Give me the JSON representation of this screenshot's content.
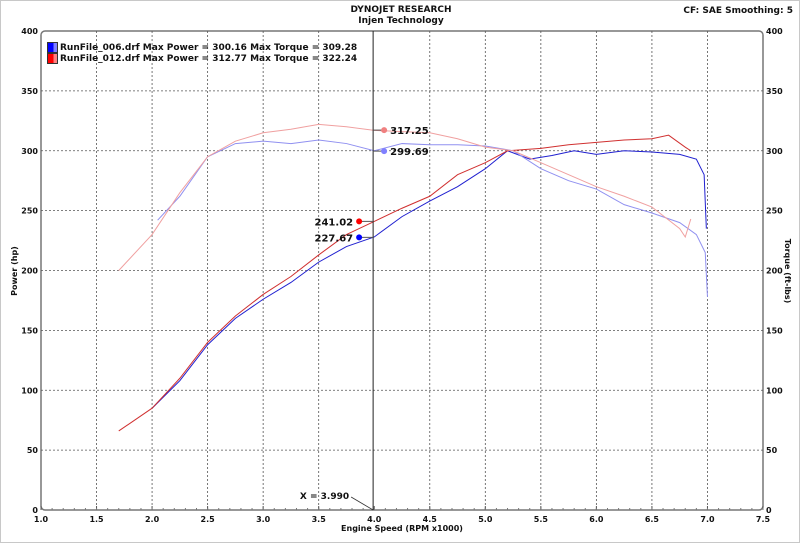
{
  "header": {
    "title": "DYNOJET RESEARCH",
    "subtitle": "Injen Technology",
    "settings": "CF: SAE  Smoothing: 5"
  },
  "legend": [
    {
      "label": "RunFile_006.drf Max Power = 300.16 Max Torque = 309.28",
      "color": "#0000ff"
    },
    {
      "label": "RunFile_012.drf Max Power = 312.77 Max Torque = 322.24",
      "color": "#ff0000"
    }
  ],
  "cursor": {
    "label": "X = 3.990",
    "x": 3.99,
    "readouts": [
      {
        "value": "317.25",
        "series": "torque_012",
        "color": "#f08080"
      },
      {
        "value": "299.69",
        "series": "torque_006",
        "color": "#8080ff"
      },
      {
        "value": "241.02",
        "series": "power_012",
        "color": "#ff0000"
      },
      {
        "value": "227.67",
        "series": "power_006",
        "color": "#0000ff"
      }
    ]
  },
  "chart_data": {
    "type": "line",
    "xlabel": "Engine Speed (RPM x1000)",
    "ylabel": "Power (hp)",
    "y2label": "Torque (ft-lbs)",
    "xlim": [
      1.0,
      7.5
    ],
    "ylim": [
      0,
      400
    ],
    "y2lim": [
      0,
      400
    ],
    "xticks": [
      "1.0",
      "1.5",
      "2.0",
      "2.5",
      "3.0",
      "3.5",
      "4.0",
      "4.5",
      "5.0",
      "5.5",
      "6.0",
      "6.5",
      "7.0",
      "7.5"
    ],
    "yticks": [
      "0",
      "50",
      "100",
      "150",
      "200",
      "250",
      "300",
      "350",
      "400"
    ],
    "grid": true,
    "legend_position": "top-left",
    "series": [
      {
        "id": "power_006",
        "color": "#2020d0",
        "points": [
          [
            2.0,
            85
          ],
          [
            2.25,
            108
          ],
          [
            2.5,
            138
          ],
          [
            2.75,
            160
          ],
          [
            3.0,
            176
          ],
          [
            3.25,
            190
          ],
          [
            3.5,
            207
          ],
          [
            3.75,
            220
          ],
          [
            4.0,
            228
          ],
          [
            4.25,
            245
          ],
          [
            4.5,
            258
          ],
          [
            4.75,
            270
          ],
          [
            5.0,
            285
          ],
          [
            5.2,
            300
          ],
          [
            5.4,
            293
          ],
          [
            5.6,
            296
          ],
          [
            5.8,
            300
          ],
          [
            6.0,
            297
          ],
          [
            6.25,
            300
          ],
          [
            6.5,
            299
          ],
          [
            6.75,
            297
          ],
          [
            6.9,
            293
          ],
          [
            6.97,
            280
          ],
          [
            6.99,
            235
          ]
        ]
      },
      {
        "id": "power_012",
        "color": "#d03030",
        "points": [
          [
            1.7,
            66
          ],
          [
            2.0,
            85
          ],
          [
            2.25,
            110
          ],
          [
            2.5,
            140
          ],
          [
            2.75,
            162
          ],
          [
            3.0,
            180
          ],
          [
            3.25,
            195
          ],
          [
            3.5,
            213
          ],
          [
            3.75,
            230
          ],
          [
            4.0,
            241
          ],
          [
            4.25,
            252
          ],
          [
            4.5,
            262
          ],
          [
            4.75,
            280
          ],
          [
            5.0,
            290
          ],
          [
            5.2,
            300
          ],
          [
            5.5,
            302
          ],
          [
            5.75,
            305
          ],
          [
            6.0,
            307
          ],
          [
            6.25,
            309
          ],
          [
            6.5,
            310
          ],
          [
            6.65,
            313
          ],
          [
            6.8,
            303
          ],
          [
            6.85,
            300
          ]
        ]
      },
      {
        "id": "torque_006",
        "color": "#9090f0",
        "points": [
          [
            2.05,
            242
          ],
          [
            2.25,
            262
          ],
          [
            2.5,
            295
          ],
          [
            2.75,
            306
          ],
          [
            3.0,
            308
          ],
          [
            3.25,
            306
          ],
          [
            3.5,
            309
          ],
          [
            3.75,
            306
          ],
          [
            4.0,
            300
          ],
          [
            4.25,
            306
          ],
          [
            4.5,
            305
          ],
          [
            4.75,
            305
          ],
          [
            5.0,
            304
          ],
          [
            5.25,
            300
          ],
          [
            5.5,
            285
          ],
          [
            5.75,
            275
          ],
          [
            6.0,
            268
          ],
          [
            6.25,
            255
          ],
          [
            6.5,
            248
          ],
          [
            6.75,
            240
          ],
          [
            6.9,
            230
          ],
          [
            6.98,
            215
          ],
          [
            7.0,
            178
          ]
        ]
      },
      {
        "id": "torque_012",
        "color": "#f0a0a0",
        "points": [
          [
            1.7,
            200
          ],
          [
            2.0,
            230
          ],
          [
            2.25,
            265
          ],
          [
            2.5,
            295
          ],
          [
            2.75,
            308
          ],
          [
            3.0,
            315
          ],
          [
            3.25,
            318
          ],
          [
            3.5,
            322
          ],
          [
            3.75,
            320
          ],
          [
            4.0,
            317
          ],
          [
            4.25,
            316
          ],
          [
            4.5,
            315
          ],
          [
            4.75,
            310
          ],
          [
            5.0,
            303
          ],
          [
            5.25,
            300
          ],
          [
            5.5,
            290
          ],
          [
            5.75,
            280
          ],
          [
            6.0,
            270
          ],
          [
            6.25,
            262
          ],
          [
            6.5,
            253
          ],
          [
            6.75,
            235
          ],
          [
            6.8,
            228
          ],
          [
            6.85,
            243
          ]
        ]
      }
    ]
  }
}
